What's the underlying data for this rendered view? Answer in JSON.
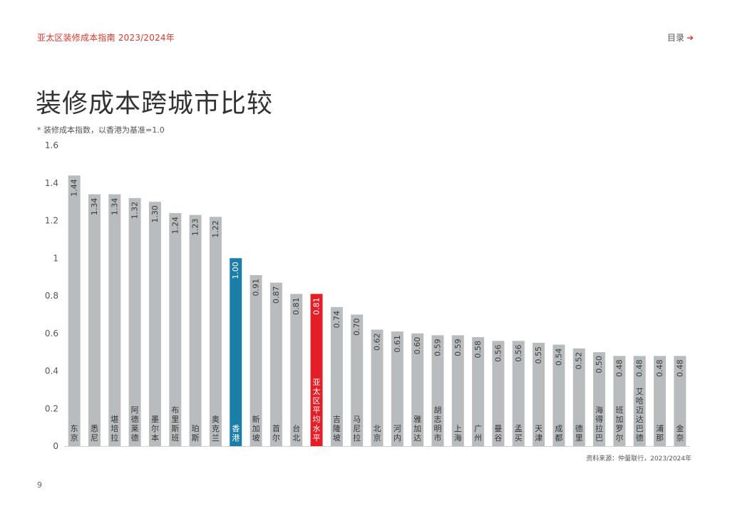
{
  "header": {
    "doc_title": "亚太区装修成本指南 2023/2024年",
    "toc_label": "目录",
    "toc_arrow": "➔"
  },
  "page": {
    "title": "装修成本跨城市比较",
    "note": "* 装修成本指数，以香港为基准=1.0",
    "source": "资料来源：仲量联行，2023/2024年",
    "number": "9"
  },
  "colors": {
    "bar_default": "#b9bcbf",
    "bar_hongkong": "#1a7ea8",
    "bar_apac_avg": "#e41e26",
    "accent": "#e0352b"
  },
  "chart_data": {
    "type": "bar",
    "orientation": "vertical",
    "title": "",
    "xlabel": "",
    "ylabel": "",
    "ylim": [
      0,
      1.6
    ],
    "yticks": [
      "0",
      "0.2",
      "0.4",
      "0.6",
      "0.8",
      "1",
      "1.2",
      "1.4",
      "1.6"
    ],
    "grid": false,
    "legend": "none",
    "categories": [
      "东京",
      "悉尼",
      "堪培拉",
      "阿德莱德",
      "墨尔本",
      "布里斯班",
      "珀斯",
      "奥克兰",
      "香港",
      "新加坡",
      "首尔",
      "台北",
      "亚太区平均水平",
      "吉隆坡",
      "马尼拉",
      "北京",
      "河内",
      "雅加达",
      "胡志明市",
      "上海",
      "广州",
      "曼谷",
      "孟买",
      "天津",
      "成都",
      "德里",
      "海得拉巴",
      "班加罗尔",
      "艾哈迈达巴德",
      "浦那",
      "金奈"
    ],
    "values": [
      1.44,
      1.34,
      1.34,
      1.32,
      1.3,
      1.24,
      1.23,
      1.22,
      1.0,
      0.91,
      0.87,
      0.81,
      0.81,
      0.74,
      0.7,
      0.62,
      0.61,
      0.6,
      0.59,
      0.59,
      0.58,
      0.56,
      0.56,
      0.55,
      0.54,
      0.52,
      0.5,
      0.48,
      0.48,
      0.48,
      0.48
    ],
    "value_labels": [
      "1.44",
      "1.34",
      "1.34",
      "1.32",
      "1.30",
      "1.24",
      "1.23",
      "1.22",
      "1.00",
      "0.91",
      "0.87",
      "0.81",
      "0.81",
      "0.74",
      "0.70",
      "0.62",
      "0.61",
      "0.60",
      "0.59",
      "0.59",
      "0.58",
      "0.56",
      "0.56",
      "0.55",
      "0.54",
      "0.52",
      "0.50",
      "0.48",
      "0.48",
      "0.48",
      "0.48"
    ],
    "highlight": {
      "香港": "bar_hongkong",
      "亚太区平均水平": "bar_apac_avg"
    }
  }
}
